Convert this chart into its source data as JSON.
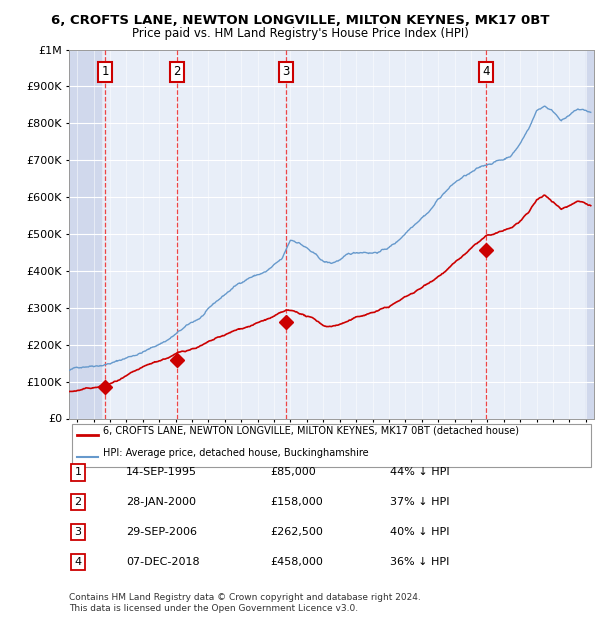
{
  "title": "6, CROFTS LANE, NEWTON LONGVILLE, MILTON KEYNES, MK17 0BT",
  "subtitle": "Price paid vs. HM Land Registry's House Price Index (HPI)",
  "xlim_start": 1993.5,
  "xlim_end": 2025.5,
  "ylim_min": 0,
  "ylim_max": 1000000,
  "yticks": [
    0,
    100000,
    200000,
    300000,
    400000,
    500000,
    600000,
    700000,
    800000,
    900000,
    1000000
  ],
  "sale_dates": [
    1995.71,
    2000.07,
    2006.74,
    2018.92
  ],
  "sale_prices": [
    85000,
    158000,
    262500,
    458000
  ],
  "sale_labels": [
    "1",
    "2",
    "3",
    "4"
  ],
  "hpi_color": "#6699cc",
  "price_color": "#cc0000",
  "vline_color": "#ee3333",
  "marker_color": "#cc0000",
  "box_edge_color": "#cc0000",
  "legend_line1": "6, CROFTS LANE, NEWTON LONGVILLE, MILTON KEYNES, MK17 0BT (detached house)",
  "legend_line2": "HPI: Average price, detached house, Buckinghamshire",
  "table_entries": [
    [
      "1",
      "14-SEP-1995",
      "£85,000",
      "44% ↓ HPI"
    ],
    [
      "2",
      "28-JAN-2000",
      "£158,000",
      "37% ↓ HPI"
    ],
    [
      "3",
      "29-SEP-2006",
      "£262,500",
      "40% ↓ HPI"
    ],
    [
      "4",
      "07-DEC-2018",
      "£458,000",
      "36% ↓ HPI"
    ]
  ],
  "footnote": "Contains HM Land Registry data © Crown copyright and database right 2024.\nThis data is licensed under the Open Government Licence v3.0.",
  "bg_color": "#ffffff",
  "plot_bg_color": "#e8eef8",
  "grid_color": "#ffffff",
  "hatch_region_end": 1995.5
}
